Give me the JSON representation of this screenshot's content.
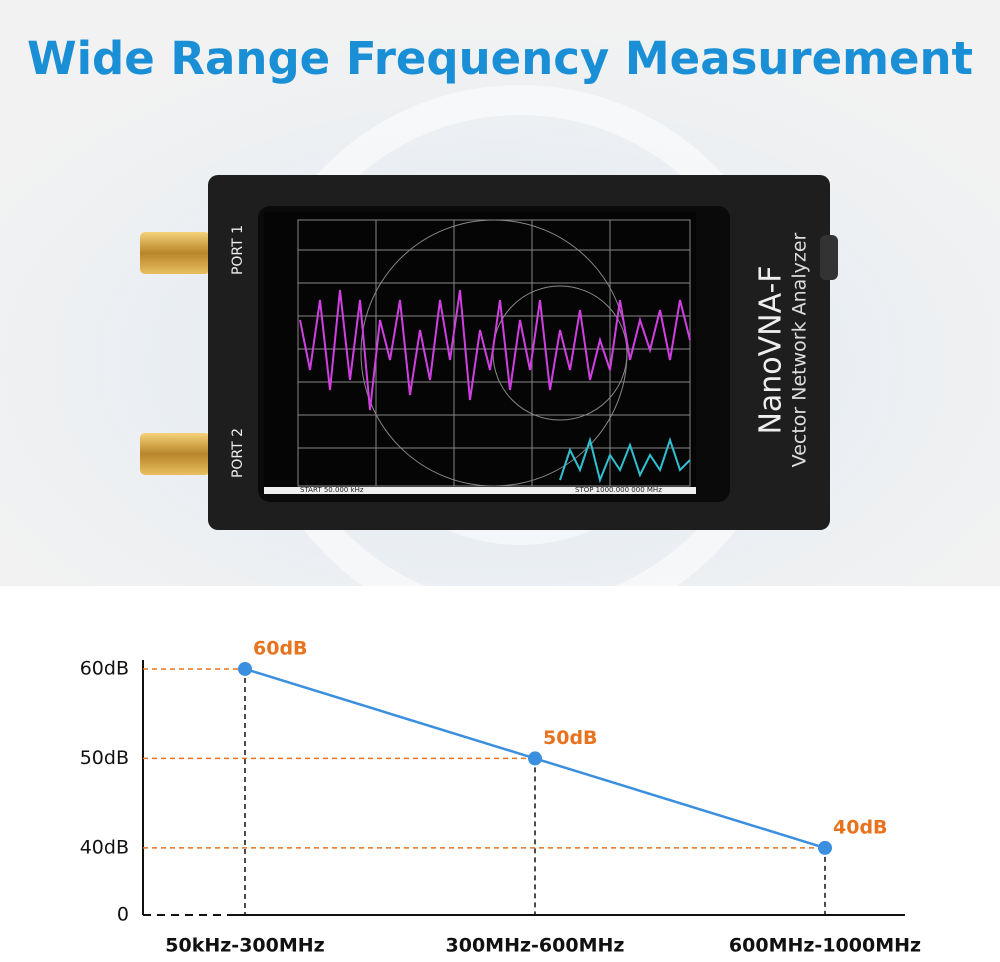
{
  "device": {
    "brand": "NanoVNA-F",
    "subtitle": "Vector Network Analyzer",
    "port1": "PORT 1",
    "port2": "PORT 2",
    "start": "START 50.000 kHz",
    "stop": "STOP 1000.000 000 MHz"
  },
  "chart_data": {
    "type": "line",
    "title": "Wide Range Frequency Measurement",
    "categories": [
      "50kHz-300MHz",
      "300MHz-600MHz",
      "600MHz-1000MHz"
    ],
    "values": [
      60,
      50,
      40
    ],
    "value_labels": [
      "60dB",
      "50dB",
      "40dB"
    ],
    "color": "#3a8fde",
    "label_color": "#e8731f",
    "ylim": [
      32.5,
      61
    ],
    "axis_break": true,
    "yticks": [
      0,
      {
        "value": 40,
        "label": "40dB"
      },
      {
        "value": 50,
        "label": "50dB"
      },
      {
        "value": 60,
        "label": "60dB"
      }
    ]
  }
}
